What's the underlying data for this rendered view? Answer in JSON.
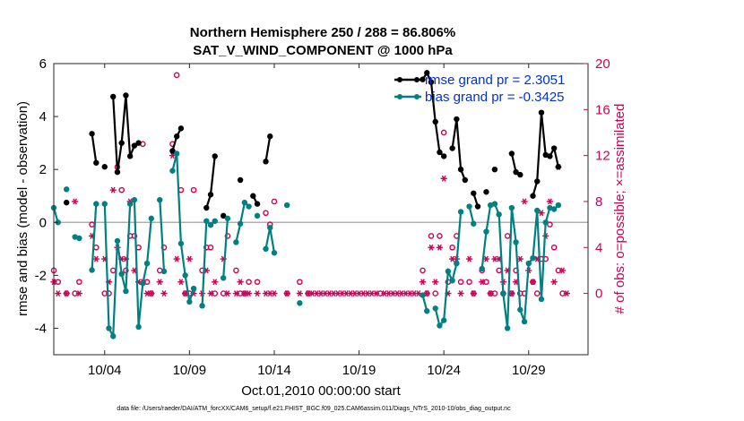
{
  "chart_data": {
    "type": "line",
    "title_line1": "Northern Hemisphere 250 / 288 = 86.806%",
    "title_line2": "SAT_V_WIND_COMPONENT @ 1000 hPa",
    "xlabel": "Oct.01,2010 00:00:00 start",
    "ylabel": "rmse and bias (model - observation)",
    "ylabel_right": "# of obs: o=possible; ×=assimilated",
    "footer": "data file: /Users/raeder/DAI/ATM_forcXX/CAM6_setup/f.e21.FHIST_BGC.f09_025.CAM6assim.011/Diags_NTrS_2010-10/obs_diag_output.nc",
    "xlim": [
      1.0,
      32.5
    ],
    "ylim": [
      -5,
      6
    ],
    "ylim_right": [
      -5.333,
      20
    ],
    "x_ticks": [
      {
        "x": 4,
        "label": "10/04"
      },
      {
        "x": 9,
        "label": "10/09"
      },
      {
        "x": 14,
        "label": "10/14"
      },
      {
        "x": 19,
        "label": "10/19"
      },
      {
        "x": 24,
        "label": "10/24"
      },
      {
        "x": 29,
        "label": "10/29"
      }
    ],
    "y_ticks": [
      "-4",
      "-2",
      "0",
      "2",
      "4",
      "6"
    ],
    "y_ticks_right": [
      "0",
      "4",
      "8",
      "12",
      "16",
      "20"
    ],
    "legend": {
      "position": "top-right",
      "rmse_label": "rmse grand pr = 2.3051",
      "bias_label": "bias grand pr = -0.3425"
    },
    "colors": {
      "rmse": "#000000",
      "bias": "#008080",
      "obs": "#cc0055",
      "zero_line": "#b0b0b0"
    },
    "series": [
      {
        "name": "rmse grand pr = 2.3051",
        "points": [
          [
            1.75,
            0.75
          ],
          [
            3.25,
            3.35
          ],
          [
            3.5,
            2.25
          ],
          [
            4.0,
            2.1
          ],
          [
            4.5,
            4.75
          ],
          [
            4.75,
            1.9
          ],
          [
            5.0,
            3.0
          ],
          [
            5.25,
            4.8
          ],
          [
            5.5,
            2.5
          ],
          [
            5.75,
            2.9
          ],
          [
            6.0,
            3.0
          ],
          [
            8.0,
            2.7
          ],
          [
            8.25,
            3.25
          ],
          [
            8.5,
            3.55
          ],
          [
            10.0,
            0.55
          ],
          [
            10.25,
            1.05
          ],
          [
            10.5,
            2.5
          ],
          [
            11.0,
            0.25
          ],
          [
            12.0,
            1.6
          ],
          [
            12.75,
            1.0
          ],
          [
            13.0,
            0.7
          ],
          [
            13.5,
            2.3
          ],
          [
            13.75,
            3.25
          ],
          [
            22.75,
            5.4
          ],
          [
            23.0,
            5.65
          ],
          [
            23.25,
            5.3
          ],
          [
            23.5,
            3.8
          ],
          [
            23.75,
            2.65
          ],
          [
            24.0,
            2.5
          ],
          [
            24.5,
            2.8
          ],
          [
            24.75,
            3.9
          ],
          [
            25.0,
            2.0
          ],
          [
            25.25,
            1.6
          ],
          [
            25.75,
            1.1
          ],
          [
            26.0,
            0.6
          ],
          [
            26.5,
            1.15
          ],
          [
            27.0,
            2.0
          ],
          [
            28.0,
            2.6
          ],
          [
            28.25,
            1.9
          ],
          [
            28.5,
            1.8
          ],
          [
            29.25,
            1.0
          ],
          [
            29.5,
            1.55
          ],
          [
            29.75,
            4.15
          ],
          [
            30.0,
            2.55
          ],
          [
            30.25,
            2.5
          ],
          [
            30.5,
            2.8
          ],
          [
            30.75,
            2.1
          ]
        ]
      },
      {
        "name": "bias grand pr = -0.3425",
        "points": [
          [
            1.0,
            0.55
          ],
          [
            1.25,
            0.0
          ],
          [
            1.75,
            1.25
          ],
          [
            2.25,
            -0.55
          ],
          [
            2.5,
            -0.6
          ],
          [
            3.25,
            -1.8
          ],
          [
            3.5,
            0.7
          ],
          [
            4.0,
            0.7
          ],
          [
            4.25,
            -4.0
          ],
          [
            4.5,
            -4.3
          ],
          [
            4.75,
            -0.7
          ],
          [
            5.0,
            -1.95
          ],
          [
            5.25,
            -2.6
          ],
          [
            5.5,
            0.7
          ],
          [
            5.75,
            0.85
          ],
          [
            6.0,
            -3.95
          ],
          [
            6.25,
            -2.3
          ],
          [
            6.5,
            -1.55
          ],
          [
            6.75,
            0.15
          ],
          [
            7.25,
            0.85
          ],
          [
            7.5,
            -1.85
          ],
          [
            8.0,
            1.95
          ],
          [
            8.25,
            2.6
          ],
          [
            8.5,
            -0.8
          ],
          [
            8.75,
            -2.0
          ],
          [
            9.0,
            -3.0
          ],
          [
            9.25,
            -2.5
          ],
          [
            9.75,
            -3.15
          ],
          [
            10.0,
            0.05
          ],
          [
            10.25,
            -0.1
          ],
          [
            10.5,
            0.05
          ],
          [
            11.0,
            -2.1
          ],
          [
            11.25,
            0.15
          ],
          [
            11.75,
            -0.75
          ],
          [
            12.0,
            -0.05
          ],
          [
            12.25,
            0.75
          ],
          [
            12.5,
            0.6
          ],
          [
            13.0,
            0.25
          ],
          [
            13.5,
            -1.0
          ],
          [
            13.75,
            -0.2
          ],
          [
            14.0,
            -1.15
          ],
          [
            14.75,
            0.65
          ],
          [
            15.5,
            -3.05
          ],
          [
            22.75,
            -2.75
          ],
          [
            23.0,
            -3.35
          ],
          [
            23.5,
            -3.25
          ],
          [
            23.75,
            -3.9
          ],
          [
            24.0,
            -3.7
          ],
          [
            24.25,
            -1.85
          ],
          [
            24.5,
            -2.2
          ],
          [
            24.75,
            -1.55
          ],
          [
            25.0,
            0.4
          ],
          [
            25.5,
            0.6
          ],
          [
            25.75,
            -0.05
          ],
          [
            26.25,
            -1.75
          ],
          [
            26.5,
            -0.35
          ],
          [
            26.75,
            0.65
          ],
          [
            27.0,
            0.7
          ],
          [
            27.25,
            0.3
          ],
          [
            27.5,
            -2.7
          ],
          [
            27.75,
            -4.0
          ],
          [
            28.0,
            0.55
          ],
          [
            28.25,
            -0.75
          ],
          [
            28.5,
            -3.3
          ],
          [
            28.75,
            -3.75
          ],
          [
            29.0,
            -1.55
          ],
          [
            29.25,
            -1.35
          ],
          [
            29.5,
            0.45
          ],
          [
            29.75,
            -2.9
          ],
          [
            30.0,
            0.0
          ],
          [
            30.25,
            0.55
          ],
          [
            30.5,
            0.5
          ],
          [
            30.75,
            0.65
          ]
        ]
      }
    ],
    "obs_possible": [
      [
        1.0,
        2
      ],
      [
        1.25,
        1
      ],
      [
        1.75,
        0
      ],
      [
        2.25,
        0
      ],
      [
        2.5,
        1
      ],
      [
        3.25,
        6
      ],
      [
        3.5,
        4
      ],
      [
        4.0,
        0
      ],
      [
        4.25,
        0
      ],
      [
        4.5,
        2
      ],
      [
        4.75,
        11
      ],
      [
        5.0,
        9
      ],
      [
        5.25,
        2
      ],
      [
        5.5,
        5
      ],
      [
        5.75,
        5
      ],
      [
        6.0,
        4
      ],
      [
        6.25,
        13
      ],
      [
        6.5,
        1
      ],
      [
        6.75,
        0
      ],
      [
        7.25,
        2
      ],
      [
        7.5,
        4
      ],
      [
        8.0,
        13
      ],
      [
        8.25,
        19
      ],
      [
        8.5,
        9
      ],
      [
        8.75,
        0
      ],
      [
        9.0,
        0
      ],
      [
        9.25,
        9
      ],
      [
        9.75,
        2
      ],
      [
        10.0,
        4
      ],
      [
        10.25,
        4
      ],
      [
        10.5,
        0
      ],
      [
        11.0,
        0
      ],
      [
        11.25,
        5
      ],
      [
        11.75,
        2
      ],
      [
        12.0,
        0
      ],
      [
        12.25,
        0
      ],
      [
        12.5,
        1
      ],
      [
        13.0,
        1
      ],
      [
        13.5,
        7
      ],
      [
        13.75,
        6
      ],
      [
        14.0,
        8
      ],
      [
        14.75,
        0
      ],
      [
        15.5,
        1
      ],
      [
        16.0,
        0
      ],
      [
        20.25,
        0
      ],
      [
        22.75,
        2
      ],
      [
        23.0,
        0
      ],
      [
        23.25,
        5
      ],
      [
        23.5,
        0
      ],
      [
        23.75,
        5
      ],
      [
        24.0,
        14
      ],
      [
        24.25,
        1
      ],
      [
        24.5,
        4
      ],
      [
        24.75,
        5
      ],
      [
        25.0,
        1
      ],
      [
        25.5,
        1
      ],
      [
        25.75,
        0
      ],
      [
        26.25,
        2
      ],
      [
        26.5,
        1
      ],
      [
        26.75,
        0
      ],
      [
        27.0,
        0
      ],
      [
        27.25,
        2
      ],
      [
        27.5,
        0
      ],
      [
        27.75,
        5
      ],
      [
        28.0,
        0
      ],
      [
        28.25,
        2
      ],
      [
        28.5,
        0
      ],
      [
        28.75,
        0
      ],
      [
        29.25,
        1
      ],
      [
        29.5,
        0
      ],
      [
        29.75,
        3
      ],
      [
        30.0,
        3
      ],
      [
        30.25,
        6
      ],
      [
        30.5,
        4
      ],
      [
        30.75,
        2
      ],
      [
        31.0,
        0
      ]
    ],
    "obs_assimilated": [
      [
        1.0,
        1
      ],
      [
        1.25,
        0
      ],
      [
        1.75,
        0
      ],
      [
        2.25,
        8
      ],
      [
        2.5,
        0
      ],
      [
        3.25,
        5
      ],
      [
        3.5,
        3
      ],
      [
        4.0,
        3
      ],
      [
        4.25,
        1
      ],
      [
        4.5,
        9
      ],
      [
        4.75,
        4
      ],
      [
        5.0,
        3
      ],
      [
        5.25,
        3
      ],
      [
        5.5,
        8
      ],
      [
        5.75,
        2
      ],
      [
        6.0,
        1
      ],
      [
        6.25,
        1
      ],
      [
        6.5,
        0
      ],
      [
        6.75,
        0
      ],
      [
        7.25,
        1
      ],
      [
        7.5,
        0
      ],
      [
        8.0,
        12
      ],
      [
        8.25,
        3
      ],
      [
        8.5,
        1
      ],
      [
        8.75,
        0
      ],
      [
        9.0,
        3
      ],
      [
        9.25,
        0
      ],
      [
        9.75,
        0
      ],
      [
        10.0,
        2
      ],
      [
        10.25,
        0
      ],
      [
        10.5,
        1
      ],
      [
        11.0,
        3
      ],
      [
        11.25,
        0
      ],
      [
        11.75,
        0
      ],
      [
        12.0,
        1
      ],
      [
        12.25,
        0
      ],
      [
        12.5,
        0
      ],
      [
        13.0,
        0
      ],
      [
        13.5,
        0
      ],
      [
        13.75,
        0
      ],
      [
        14.0,
        0
      ],
      [
        14.75,
        0
      ],
      [
        15.5,
        0
      ],
      [
        16.0,
        0
      ],
      [
        16.25,
        0
      ],
      [
        16.5,
        0
      ],
      [
        16.75,
        0
      ],
      [
        17.0,
        0
      ],
      [
        17.25,
        0
      ],
      [
        17.5,
        0
      ],
      [
        17.75,
        0
      ],
      [
        18.0,
        0
      ],
      [
        18.25,
        0
      ],
      [
        18.5,
        0
      ],
      [
        18.75,
        0
      ],
      [
        19.0,
        0
      ],
      [
        19.25,
        0
      ],
      [
        19.5,
        0
      ],
      [
        19.75,
        0
      ],
      [
        20.0,
        0
      ],
      [
        20.5,
        0
      ],
      [
        20.75,
        0
      ],
      [
        21.0,
        0
      ],
      [
        21.25,
        0
      ],
      [
        21.5,
        0
      ],
      [
        21.75,
        0
      ],
      [
        22.0,
        0
      ],
      [
        22.25,
        0
      ],
      [
        22.5,
        0
      ],
      [
        22.75,
        1
      ],
      [
        23.0,
        0
      ],
      [
        23.25,
        4
      ],
      [
        23.5,
        1
      ],
      [
        23.75,
        4
      ],
      [
        24.0,
        10
      ],
      [
        24.25,
        0
      ],
      [
        24.5,
        3
      ],
      [
        24.75,
        3
      ],
      [
        25.0,
        0
      ],
      [
        25.5,
        3
      ],
      [
        25.75,
        0
      ],
      [
        26.25,
        1
      ],
      [
        26.5,
        3
      ],
      [
        26.75,
        0
      ],
      [
        27.0,
        3
      ],
      [
        27.25,
        3
      ],
      [
        27.5,
        1
      ],
      [
        27.75,
        2
      ],
      [
        28.0,
        0
      ],
      [
        28.25,
        1
      ],
      [
        28.5,
        3
      ],
      [
        28.75,
        8
      ],
      [
        29.0,
        2
      ],
      [
        29.25,
        1
      ],
      [
        29.5,
        3
      ],
      [
        29.75,
        7
      ],
      [
        30.0,
        5
      ],
      [
        30.25,
        8
      ],
      [
        30.5,
        1
      ],
      [
        30.75,
        11
      ],
      [
        31.0,
        2
      ],
      [
        31.25,
        0
      ]
    ]
  }
}
